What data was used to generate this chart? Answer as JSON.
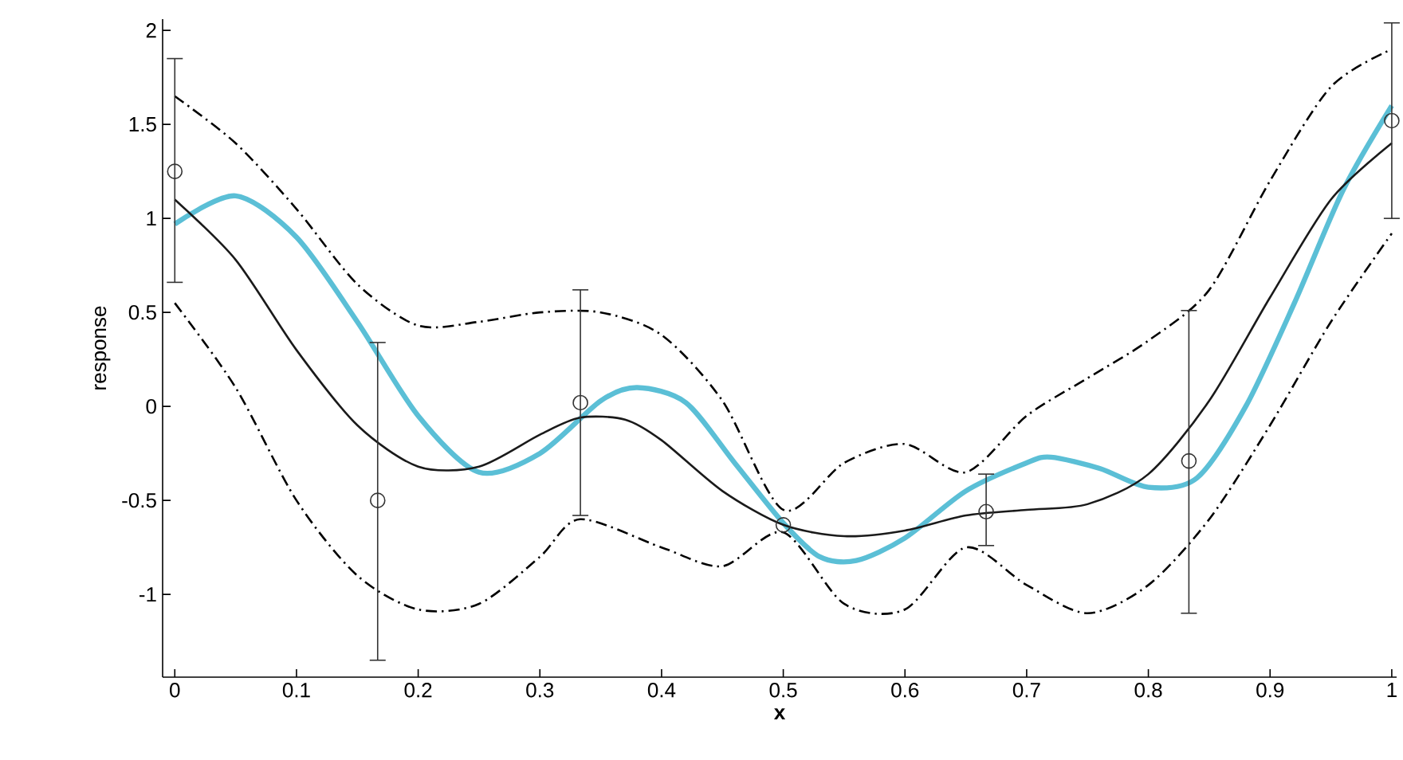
{
  "chart_data": {
    "type": "line",
    "xlabel": "x",
    "ylabel": "response",
    "xlim": [
      -0.01,
      1.004
    ],
    "ylim": [
      -1.44,
      2.06
    ],
    "xticks": [
      0,
      0.1,
      0.2,
      0.3,
      0.4,
      0.5,
      0.6,
      0.7,
      0.8,
      0.9,
      1
    ],
    "yticks": [
      -1,
      -0.5,
      0,
      0.5,
      1,
      1.5,
      2
    ],
    "grid": false,
    "series": [
      {
        "color": "#5bbfd6",
        "line_style": "solid",
        "x": [
          0,
          0.05,
          0.1,
          0.15,
          0.2,
          0.25,
          0.3,
          0.35,
          0.38,
          0.42,
          0.46,
          0.5,
          0.53,
          0.56,
          0.6,
          0.65,
          0.7,
          0.72,
          0.76,
          0.8,
          0.84,
          0.88,
          0.92,
          0.96,
          1
        ],
        "values": [
          0.97,
          1.12,
          0.9,
          0.45,
          -0.05,
          -0.35,
          -0.25,
          0.03,
          0.1,
          0.02,
          -0.3,
          -0.62,
          -0.8,
          -0.82,
          -0.7,
          -0.45,
          -0.3,
          -0.27,
          -0.33,
          -0.43,
          -0.38,
          0,
          0.55,
          1.15,
          1.6
        ]
      },
      {
        "color": "#000000",
        "line_style": "dashdot",
        "x": [
          0,
          0.05,
          0.1,
          0.15,
          0.2,
          0.25,
          0.3,
          0.35,
          0.4,
          0.45,
          0.5,
          0.55,
          0.6,
          0.65,
          0.7,
          0.75,
          0.8,
          0.85,
          0.9,
          0.95,
          1
        ],
        "values": [
          1.65,
          1.4,
          1.05,
          0.65,
          0.43,
          0.45,
          0.5,
          0.5,
          0.38,
          0.03,
          -0.55,
          -0.3,
          -0.2,
          -0.35,
          -0.05,
          0.15,
          0.35,
          0.62,
          1.2,
          1.7,
          1.9
        ]
      },
      {
        "color": "#000000",
        "line_style": "dashdot",
        "x": [
          0,
          0.05,
          0.1,
          0.15,
          0.2,
          0.25,
          0.3,
          0.333,
          0.4,
          0.45,
          0.5,
          0.55,
          0.6,
          0.65,
          0.7,
          0.75,
          0.8,
          0.85,
          0.9,
          0.95,
          1
        ],
        "values": [
          0.55,
          0.1,
          -0.5,
          -0.9,
          -1.08,
          -1.05,
          -0.8,
          -0.6,
          -0.75,
          -0.85,
          -0.67,
          -1.05,
          -1.08,
          -0.75,
          -0.95,
          -1.1,
          -0.95,
          -0.6,
          -0.1,
          0.45,
          0.92
        ]
      },
      {
        "color": "#1a1a1a",
        "line_style": "solid",
        "x": [
          0,
          0.05,
          0.1,
          0.15,
          0.2,
          0.25,
          0.3,
          0.333,
          0.37,
          0.4,
          0.45,
          0.5,
          0.55,
          0.6,
          0.65,
          0.7,
          0.75,
          0.8,
          0.85,
          0.9,
          0.95,
          1
        ],
        "values": [
          1.1,
          0.78,
          0.3,
          -0.1,
          -0.32,
          -0.32,
          -0.15,
          -0.06,
          -0.07,
          -0.18,
          -0.45,
          -0.63,
          -0.69,
          -0.66,
          -0.58,
          -0.55,
          -0.52,
          -0.36,
          0.03,
          0.58,
          1.1,
          1.4
        ]
      },
      {
        "type": "scatter",
        "color": "#333333",
        "marker": "circle",
        "x": [
          0,
          0.1667,
          0.3333,
          0.5,
          0.6667,
          0.8333,
          1
        ],
        "values": [
          1.25,
          -0.5,
          0.02,
          -0.63,
          -0.56,
          -0.29,
          1.52
        ],
        "errors": [
          [
            0.66,
            1.85
          ],
          [
            -1.35,
            0.34
          ],
          [
            -0.58,
            0.62
          ],
          null,
          [
            -0.74,
            -0.36
          ],
          [
            -1.1,
            0.51
          ],
          [
            1.0,
            2.04
          ]
        ]
      }
    ]
  }
}
